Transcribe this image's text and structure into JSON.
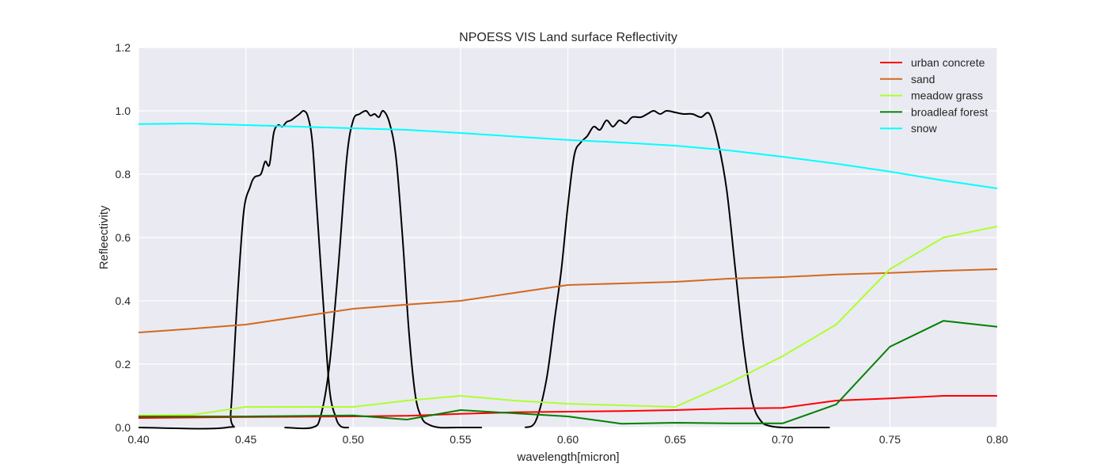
{
  "chart_data": {
    "type": "line",
    "title": "NPOESS VIS Land surface Reflectivity",
    "xlabel": "wavelength[micron]",
    "ylabel": "Refleectivity",
    "xlim": [
      0.4,
      0.8
    ],
    "ylim": [
      0.0,
      1.2
    ],
    "xticks": [
      "0.40",
      "0.45",
      "0.50",
      "0.55",
      "0.60",
      "0.65",
      "0.70",
      "0.75",
      "0.80"
    ],
    "yticks": [
      "0.0",
      "0.2",
      "0.4",
      "0.6",
      "0.8",
      "1.0",
      "1.2"
    ],
    "grid": true,
    "legend_position": "top-right",
    "series": [
      {
        "name": "urban concrete",
        "color": "#ff0000",
        "x": [
          0.4,
          0.45,
          0.5,
          0.525,
          0.55,
          0.575,
          0.6,
          0.625,
          0.65,
          0.675,
          0.7,
          0.725,
          0.75,
          0.775,
          0.8
        ],
        "y": [
          0.03,
          0.033,
          0.035,
          0.037,
          0.043,
          0.048,
          0.05,
          0.052,
          0.055,
          0.06,
          0.062,
          0.085,
          0.092,
          0.1,
          0.1
        ]
      },
      {
        "name": "sand",
        "color": "#d2691e",
        "x": [
          0.4,
          0.425,
          0.45,
          0.475,
          0.5,
          0.525,
          0.55,
          0.575,
          0.6,
          0.625,
          0.65,
          0.675,
          0.7,
          0.725,
          0.75,
          0.775,
          0.8
        ],
        "y": [
          0.3,
          0.312,
          0.325,
          0.35,
          0.375,
          0.388,
          0.4,
          0.425,
          0.45,
          0.455,
          0.46,
          0.47,
          0.475,
          0.483,
          0.488,
          0.495,
          0.5
        ]
      },
      {
        "name": "meadow grass",
        "color": "#adff2f",
        "x": [
          0.4,
          0.425,
          0.45,
          0.475,
          0.5,
          0.525,
          0.55,
          0.575,
          0.6,
          0.625,
          0.65,
          0.675,
          0.7,
          0.725,
          0.75,
          0.775,
          0.8
        ],
        "y": [
          0.038,
          0.04,
          0.065,
          0.065,
          0.065,
          0.085,
          0.1,
          0.085,
          0.075,
          0.07,
          0.065,
          0.14,
          0.225,
          0.325,
          0.5,
          0.6,
          0.635
        ]
      },
      {
        "name": "broadleaf forest",
        "color": "#008000",
        "x": [
          0.4,
          0.45,
          0.5,
          0.525,
          0.55,
          0.6,
          0.625,
          0.65,
          0.675,
          0.7,
          0.725,
          0.75,
          0.775,
          0.8
        ],
        "y": [
          0.035,
          0.035,
          0.038,
          0.025,
          0.055,
          0.035,
          0.012,
          0.015,
          0.013,
          0.013,
          0.073,
          0.255,
          0.337,
          0.318
        ]
      },
      {
        "name": "snow",
        "color": "#00ffff",
        "x": [
          0.4,
          0.425,
          0.45,
          0.5,
          0.525,
          0.55,
          0.6,
          0.625,
          0.65,
          0.675,
          0.7,
          0.725,
          0.75,
          0.775,
          0.8
        ],
        "y": [
          0.958,
          0.96,
          0.955,
          0.945,
          0.94,
          0.93,
          0.908,
          0.9,
          0.89,
          0.875,
          0.855,
          0.833,
          0.808,
          0.78,
          0.755
        ]
      }
    ],
    "band_curves": [
      {
        "color": "#000000",
        "x": [
          0.4,
          0.441,
          0.443,
          0.446,
          0.449,
          0.452,
          0.454,
          0.457,
          0.459,
          0.461,
          0.463,
          0.465,
          0.467,
          0.469,
          0.471,
          0.473,
          0.475,
          0.477,
          0.479,
          0.481,
          0.483,
          0.486,
          0.489,
          0.492,
          0.494,
          0.496,
          0.498
        ],
        "y": [
          0.0,
          0.0,
          0.05,
          0.4,
          0.68,
          0.76,
          0.79,
          0.8,
          0.84,
          0.83,
          0.93,
          0.955,
          0.95,
          0.965,
          0.97,
          0.98,
          0.99,
          1.0,
          0.98,
          0.9,
          0.7,
          0.4,
          0.12,
          0.03,
          0.005,
          0.0,
          0.0
        ]
      },
      {
        "color": "#000000",
        "x": [
          0.468,
          0.481,
          0.485,
          0.489,
          0.493,
          0.497,
          0.5,
          0.503,
          0.506,
          0.508,
          0.51,
          0.512,
          0.514,
          0.517,
          0.52,
          0.523,
          0.526,
          0.529,
          0.532,
          0.535,
          0.54,
          0.548,
          0.555,
          0.56
        ],
        "y": [
          0.0,
          0.0,
          0.04,
          0.2,
          0.5,
          0.85,
          0.97,
          0.99,
          1.0,
          0.985,
          0.99,
          0.98,
          1.0,
          0.96,
          0.85,
          0.6,
          0.3,
          0.1,
          0.03,
          0.01,
          0.0,
          0.0,
          0.0,
          0.0
        ]
      },
      {
        "color": "#000000",
        "x": [
          0.58,
          0.585,
          0.59,
          0.594,
          0.597,
          0.6,
          0.603,
          0.606,
          0.609,
          0.612,
          0.615,
          0.618,
          0.621,
          0.624,
          0.627,
          0.63,
          0.634,
          0.637,
          0.64,
          0.643,
          0.646,
          0.65,
          0.654,
          0.658,
          0.662,
          0.666,
          0.67,
          0.674,
          0.678,
          0.682,
          0.686,
          0.69,
          0.694,
          0.7,
          0.71,
          0.722
        ],
        "y": [
          0.0,
          0.02,
          0.15,
          0.35,
          0.5,
          0.7,
          0.86,
          0.9,
          0.92,
          0.95,
          0.94,
          0.97,
          0.95,
          0.97,
          0.96,
          0.98,
          0.98,
          0.99,
          1.0,
          0.99,
          1.0,
          0.995,
          0.99,
          0.99,
          0.98,
          0.99,
          0.9,
          0.75,
          0.5,
          0.25,
          0.08,
          0.02,
          0.005,
          0.0,
          0.0,
          0.0
        ]
      }
    ]
  }
}
